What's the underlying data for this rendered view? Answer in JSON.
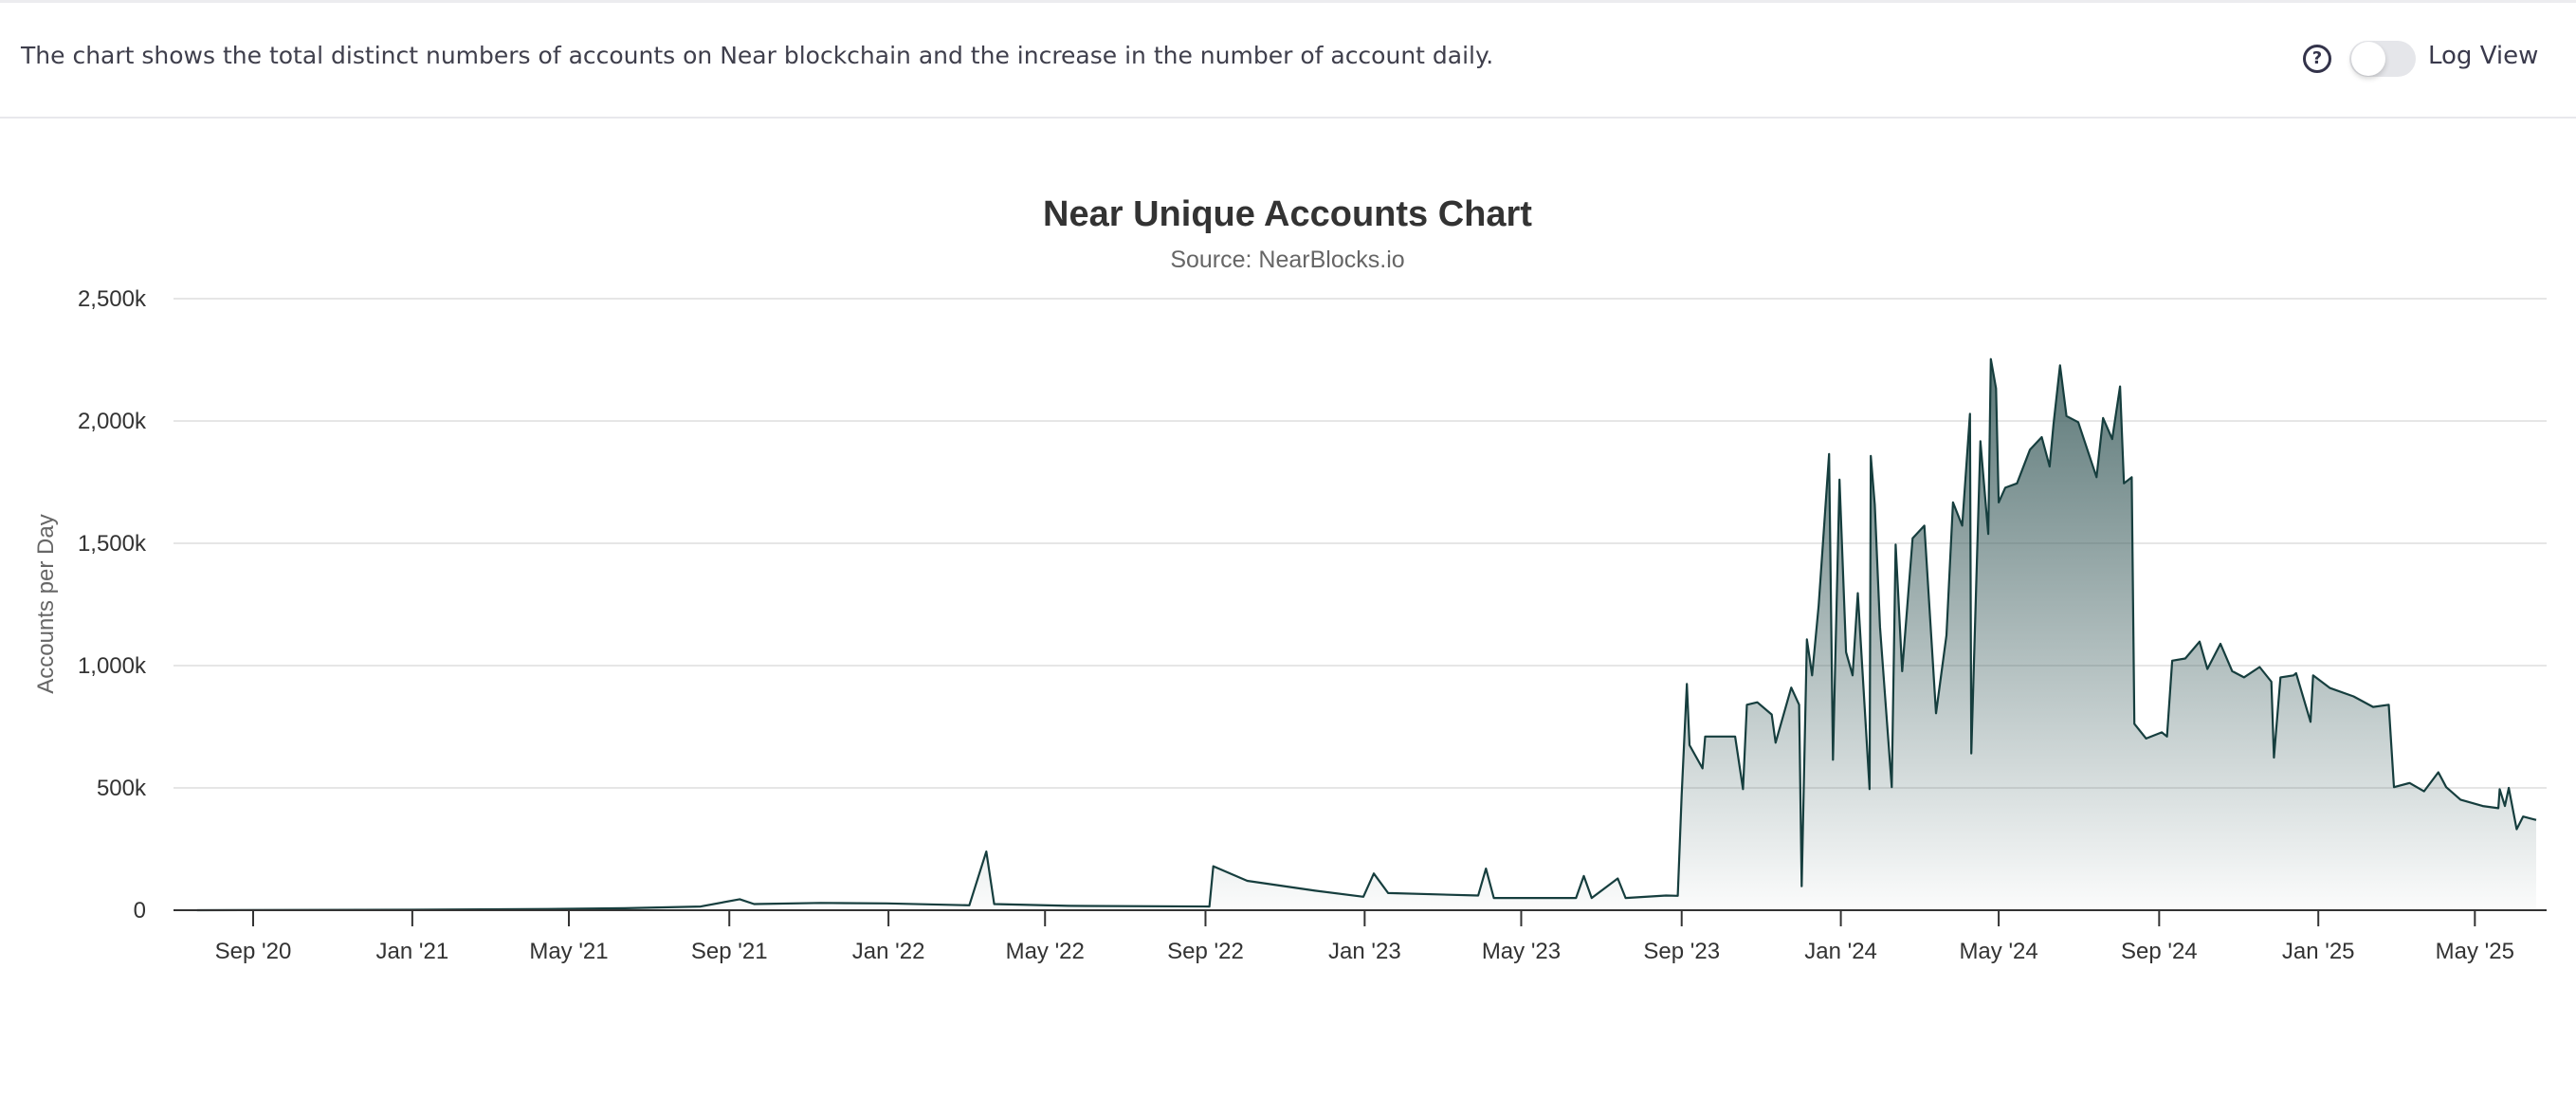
{
  "header": {
    "description": "The chart shows the total distinct numbers of accounts on Near blockchain and the increase in the number of account daily.",
    "help_icon": "question-circle-icon",
    "log_view_label": "Log View",
    "log_view_enabled": false
  },
  "colors": {
    "line": "#163e3e",
    "fill_top": "#3e5f5f",
    "grid": "#e6e6e6"
  },
  "chart_data": {
    "type": "area",
    "title": "Near Unique Accounts Chart",
    "subtitle": "Source: NearBlocks.io",
    "xlabel": "",
    "ylabel": "Accounts per Day",
    "ylim": [
      0,
      2500000
    ],
    "grid": true,
    "legend": "none",
    "y_ticks": [
      {
        "value": 0,
        "label": "0"
      },
      {
        "value": 500000,
        "label": "500k"
      },
      {
        "value": 1000000,
        "label": "1,000k"
      },
      {
        "value": 1500000,
        "label": "1,500k"
      },
      {
        "value": 2000000,
        "label": "2,000k"
      },
      {
        "value": 2500000,
        "label": "2,500k"
      }
    ],
    "x_ticks": [
      {
        "date": "2020-09-01",
        "label": "Sep '20"
      },
      {
        "date": "2021-01-01",
        "label": "Jan '21"
      },
      {
        "date": "2021-05-01",
        "label": "May '21"
      },
      {
        "date": "2021-09-01",
        "label": "Sep '21"
      },
      {
        "date": "2022-01-01",
        "label": "Jan '22"
      },
      {
        "date": "2022-05-01",
        "label": "May '22"
      },
      {
        "date": "2022-09-01",
        "label": "Sep '22"
      },
      {
        "date": "2023-01-01",
        "label": "Jan '23"
      },
      {
        "date": "2023-05-01",
        "label": "May '23"
      },
      {
        "date": "2023-09-01",
        "label": "Sep '23"
      },
      {
        "date": "2024-01-01",
        "label": "Jan '24"
      },
      {
        "date": "2024-05-01",
        "label": "May '24"
      },
      {
        "date": "2024-09-01",
        "label": "Sep '24"
      },
      {
        "date": "2025-01-01",
        "label": "Jan '25"
      },
      {
        "date": "2025-05-01",
        "label": "May '25"
      }
    ],
    "series": [
      {
        "points": [
          [
            "2020-07-20",
            0
          ],
          [
            "2021-01-01",
            2000
          ],
          [
            "2021-04-15",
            5000
          ],
          [
            "2021-06-13",
            8000
          ],
          [
            "2021-08-10",
            15000
          ],
          [
            "2021-09-09",
            45000
          ],
          [
            "2021-09-20",
            25000
          ],
          [
            "2021-11-10",
            30000
          ],
          [
            "2021-12-31",
            28000
          ],
          [
            "2022-03-04",
            20000
          ],
          [
            "2022-03-17",
            240000
          ],
          [
            "2022-03-23",
            25000
          ],
          [
            "2022-05-19",
            18000
          ],
          [
            "2022-09-04",
            15000
          ],
          [
            "2022-09-07",
            180000
          ],
          [
            "2022-10-03",
            120000
          ],
          [
            "2022-11-24",
            80000
          ],
          [
            "2022-12-31",
            55000
          ],
          [
            "2023-01-08",
            150000
          ],
          [
            "2023-01-19",
            70000
          ],
          [
            "2023-03-29",
            60000
          ],
          [
            "2023-04-04",
            170000
          ],
          [
            "2023-04-10",
            50000
          ],
          [
            "2023-06-12",
            50000
          ],
          [
            "2023-06-18",
            140000
          ],
          [
            "2023-06-24",
            50000
          ],
          [
            "2023-07-14",
            130000
          ],
          [
            "2023-07-20",
            50000
          ],
          [
            "2023-08-20",
            60000
          ],
          [
            "2023-08-29",
            59000
          ],
          [
            "2023-09-01",
            470000
          ],
          [
            "2023-09-05",
            925000
          ],
          [
            "2023-09-07",
            675000
          ],
          [
            "2023-09-17",
            580000
          ],
          [
            "2023-09-19",
            710000
          ],
          [
            "2023-10-12",
            710000
          ],
          [
            "2023-10-18",
            495000
          ],
          [
            "2023-10-21",
            840000
          ],
          [
            "2023-10-29",
            850000
          ],
          [
            "2023-11-09",
            800000
          ],
          [
            "2023-11-12",
            685000
          ],
          [
            "2023-11-24",
            910000
          ],
          [
            "2023-11-30",
            840000
          ],
          [
            "2023-12-02",
            98000
          ],
          [
            "2023-12-06",
            1107000
          ],
          [
            "2023-12-10",
            960000
          ],
          [
            "2023-12-15",
            1245000
          ],
          [
            "2023-12-23",
            1865000
          ],
          [
            "2023-12-26",
            615000
          ],
          [
            "2023-12-31",
            1760000
          ],
          [
            "2024-01-05",
            1055000
          ],
          [
            "2024-01-10",
            960000
          ],
          [
            "2024-01-14",
            1296000
          ],
          [
            "2024-01-23",
            495000
          ],
          [
            "2024-01-24",
            1857000
          ],
          [
            "2024-01-27",
            1658000
          ],
          [
            "2024-01-31",
            1158000
          ],
          [
            "2024-02-09",
            503000
          ],
          [
            "2024-02-12",
            1495000
          ],
          [
            "2024-02-17",
            977000
          ],
          [
            "2024-02-25",
            1520000
          ],
          [
            "2024-03-05",
            1572000
          ],
          [
            "2024-03-14",
            805000
          ],
          [
            "2024-03-22",
            1124000
          ],
          [
            "2024-03-27",
            1667000
          ],
          [
            "2024-04-03",
            1572000
          ],
          [
            "2024-04-09",
            2029000
          ],
          [
            "2024-04-10",
            641000
          ],
          [
            "2024-04-17",
            1917000
          ],
          [
            "2024-04-23",
            1538000
          ],
          [
            "2024-04-25",
            2253000
          ],
          [
            "2024-04-29",
            2133000
          ],
          [
            "2024-05-01",
            1667000
          ],
          [
            "2024-05-06",
            1727000
          ],
          [
            "2024-05-15",
            1745000
          ],
          [
            "2024-05-25",
            1883000
          ],
          [
            "2024-06-03",
            1934000
          ],
          [
            "2024-06-09",
            1814000
          ],
          [
            "2024-06-12",
            1986000
          ],
          [
            "2024-06-17",
            2227000
          ],
          [
            "2024-06-22",
            2020000
          ],
          [
            "2024-07-01",
            1995000
          ],
          [
            "2024-07-15",
            1770000
          ],
          [
            "2024-07-20",
            2012000
          ],
          [
            "2024-07-27",
            1926000
          ],
          [
            "2024-08-02",
            2141000
          ],
          [
            "2024-08-05",
            1745000
          ],
          [
            "2024-08-11",
            1770000
          ],
          [
            "2024-08-13",
            762000
          ],
          [
            "2024-08-22",
            702000
          ],
          [
            "2024-09-03",
            727000
          ],
          [
            "2024-09-07",
            710000
          ],
          [
            "2024-09-11",
            1020000
          ],
          [
            "2024-09-21",
            1029000
          ],
          [
            "2024-10-02",
            1098000
          ],
          [
            "2024-10-08",
            986000
          ],
          [
            "2024-10-18",
            1089000
          ],
          [
            "2024-10-27",
            977000
          ],
          [
            "2024-11-05",
            952000
          ],
          [
            "2024-11-17",
            994000
          ],
          [
            "2024-11-26",
            934000
          ],
          [
            "2024-11-28",
            624000
          ],
          [
            "2024-12-03",
            952000
          ],
          [
            "2024-12-13",
            960000
          ],
          [
            "2024-12-15",
            969000
          ],
          [
            "2024-12-26",
            770000
          ],
          [
            "2024-12-28",
            960000
          ],
          [
            "2025-01-10",
            908000
          ],
          [
            "2025-01-28",
            874000
          ],
          [
            "2025-02-12",
            831000
          ],
          [
            "2025-02-24",
            840000
          ],
          [
            "2025-02-28",
            503000
          ],
          [
            "2025-03-12",
            520000
          ],
          [
            "2025-03-23",
            486000
          ],
          [
            "2025-04-03",
            564000
          ],
          [
            "2025-04-09",
            503000
          ],
          [
            "2025-04-20",
            452000
          ],
          [
            "2025-05-07",
            426000
          ],
          [
            "2025-05-19",
            417000
          ],
          [
            "2025-05-20",
            495000
          ],
          [
            "2025-05-24",
            426000
          ],
          [
            "2025-05-27",
            500000
          ],
          [
            "2025-06-02",
            331000
          ],
          [
            "2025-06-07",
            383000
          ],
          [
            "2025-06-17",
            369000
          ]
        ]
      }
    ]
  }
}
